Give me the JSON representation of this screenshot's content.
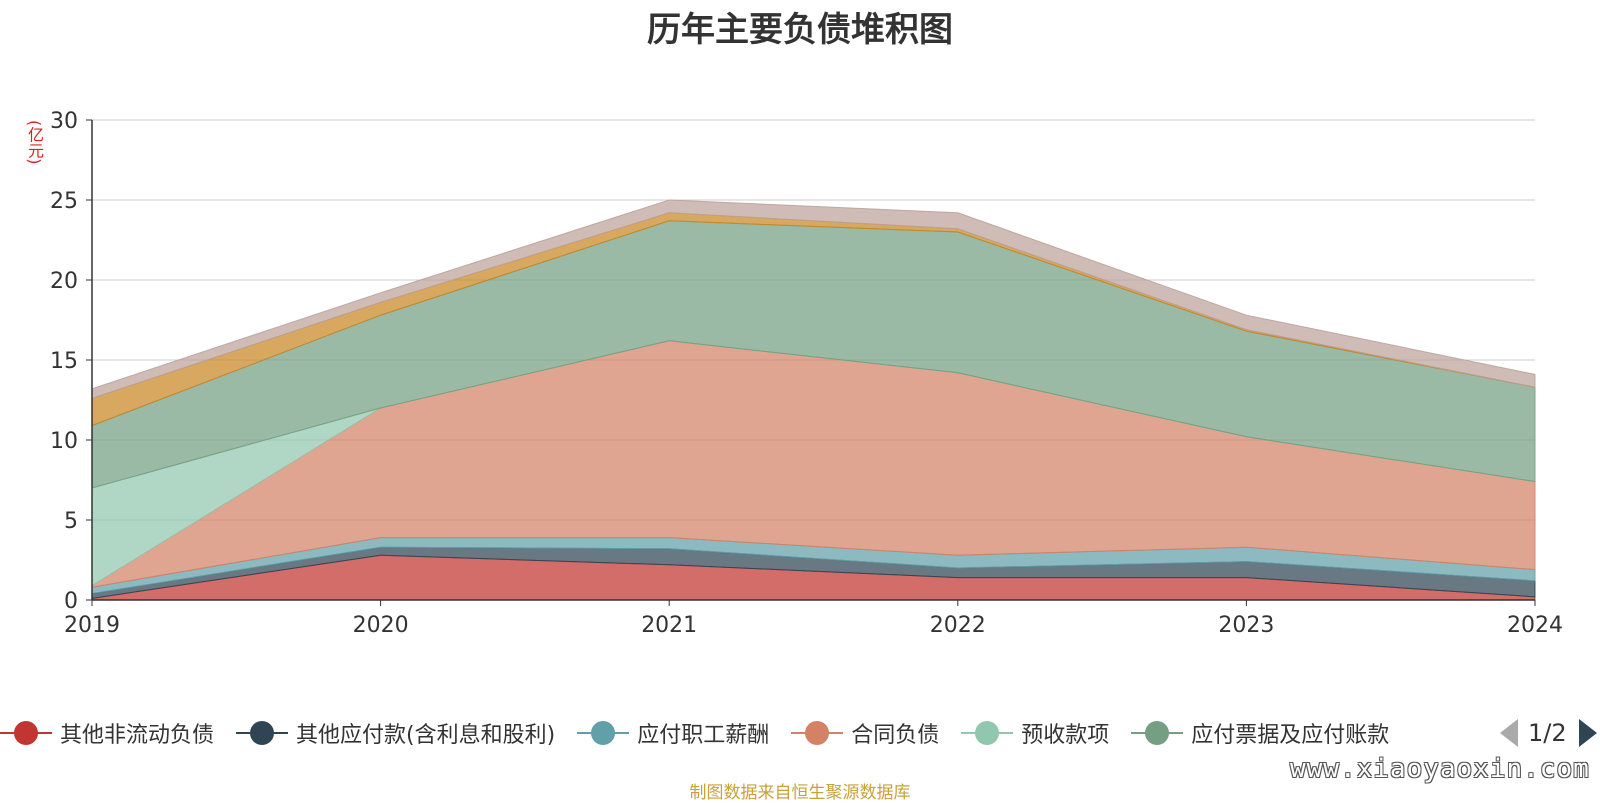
{
  "chart_data": {
    "type": "area",
    "stacked": true,
    "title": "历年主要负债堆积图",
    "ylabel": "(亿元)",
    "xlabel": "",
    "categories": [
      "2019",
      "2020",
      "2021",
      "2022",
      "2023",
      "2024"
    ],
    "ylim": [
      0,
      30
    ],
    "yticks": [
      "0",
      "5",
      "10",
      "15",
      "20",
      "25",
      "30"
    ],
    "grid": true,
    "series": [
      {
        "name": "其他非流动负债",
        "color": "#c23531",
        "values": [
          0.1,
          2.8,
          2.2,
          1.4,
          1.4,
          0.2
        ]
      },
      {
        "name": "其他应付款(含利息和股利)",
        "color": "#2f4554",
        "values": [
          0.3,
          0.5,
          1.0,
          0.6,
          1.0,
          1.0
        ]
      },
      {
        "name": "应付职工薪酬",
        "color": "#61a0a8",
        "values": [
          0.4,
          0.6,
          0.7,
          0.8,
          0.9,
          0.7
        ]
      },
      {
        "name": "合同负债",
        "color": "#d48265",
        "values": [
          0.1,
          8.1,
          12.3,
          11.4,
          6.9,
          5.5
        ]
      },
      {
        "name": "预收款项",
        "color": "#91c7ae",
        "values": [
          6.1,
          0.0,
          0.0,
          0.0,
          0.0,
          0.0
        ]
      },
      {
        "name": "应付票据及应付账款",
        "color": "#749f83",
        "values": [
          3.9,
          5.8,
          7.5,
          8.8,
          6.6,
          5.9
        ]
      },
      {
        "name": "",
        "color": "#ca8622",
        "values": [
          1.7,
          0.8,
          0.5,
          0.2,
          0.1,
          0.0
        ]
      },
      {
        "name": "",
        "color": "#bda29a",
        "values": [
          0.6,
          0.6,
          0.8,
          1.0,
          0.9,
          0.8
        ]
      }
    ]
  },
  "legend": {
    "items": [
      "其他非流动负债",
      "其他应付款(含利息和股利)",
      "应付职工薪酬",
      "合同负债",
      "预收款项",
      "应付票据及应付账款"
    ],
    "page_text": "1/2"
  },
  "source_text": "制图数据来自恒生聚源数据库",
  "watermark_text": "www.xiaoyaoxin.com"
}
